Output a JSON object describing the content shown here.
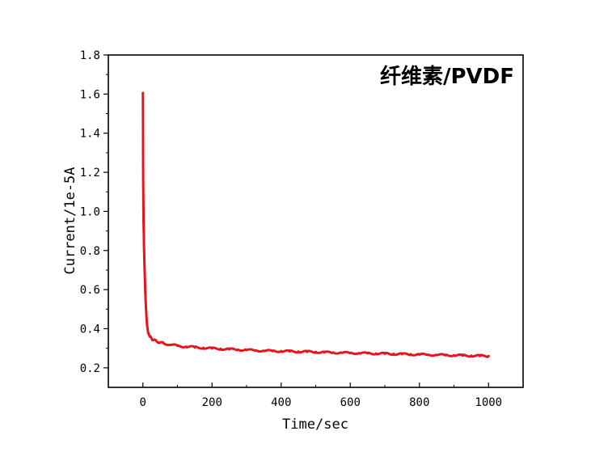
{
  "chart_data": {
    "type": "scatter",
    "title": "纤维素/PVDF",
    "xlabel": "Time/sec",
    "ylabel": "Current/1e-5A",
    "xlim": [
      -100,
      1100
    ],
    "ylim": [
      0.1,
      1.8
    ],
    "xticks": [
      0,
      200,
      400,
      600,
      800,
      1000
    ],
    "yticks": [
      0.2,
      0.4,
      0.6,
      0.8,
      1.0,
      1.2,
      1.4,
      1.6,
      1.8
    ],
    "x_tick_labels": [
      "0",
      "200",
      "400",
      "600",
      "800",
      "1000"
    ],
    "y_tick_labels": [
      "0.2",
      "0.4",
      "0.6",
      "0.8",
      "1.0",
      "1.2",
      "1.4",
      "1.6",
      "1.8"
    ],
    "grid": false,
    "legend": "none",
    "series": [
      {
        "color": "#e8141c",
        "x": [
          0,
          0.5,
          1,
          1.5,
          2,
          2.5,
          3,
          3.5,
          4,
          5,
          6,
          7,
          8,
          10,
          12,
          15,
          20,
          25,
          30,
          40,
          50,
          60,
          80,
          100,
          125,
          150,
          175,
          200,
          225,
          250,
          275,
          300,
          325,
          350,
          375,
          400,
          425,
          450,
          475,
          500,
          525,
          550,
          575,
          600,
          625,
          650,
          675,
          700,
          725,
          750,
          775,
          800,
          825,
          850,
          875,
          900,
          925,
          950,
          975,
          1000
        ],
        "y": [
          1.605,
          1.29,
          1.125,
          1.015,
          0.945,
          0.895,
          0.845,
          0.8,
          0.76,
          0.7,
          0.64,
          0.59,
          0.54,
          0.47,
          0.42,
          0.38,
          0.36,
          0.35,
          0.342,
          0.335,
          0.33,
          0.325,
          0.318,
          0.313,
          0.308,
          0.305,
          0.302,
          0.299,
          0.297,
          0.295,
          0.293,
          0.291,
          0.289,
          0.287,
          0.286,
          0.285,
          0.284,
          0.283,
          0.282,
          0.281,
          0.279,
          0.278,
          0.277,
          0.276,
          0.275,
          0.274,
          0.273,
          0.272,
          0.271,
          0.27,
          0.269,
          0.268,
          0.267,
          0.266,
          0.265,
          0.264,
          0.263,
          0.262,
          0.261,
          0.26
        ]
      }
    ]
  }
}
